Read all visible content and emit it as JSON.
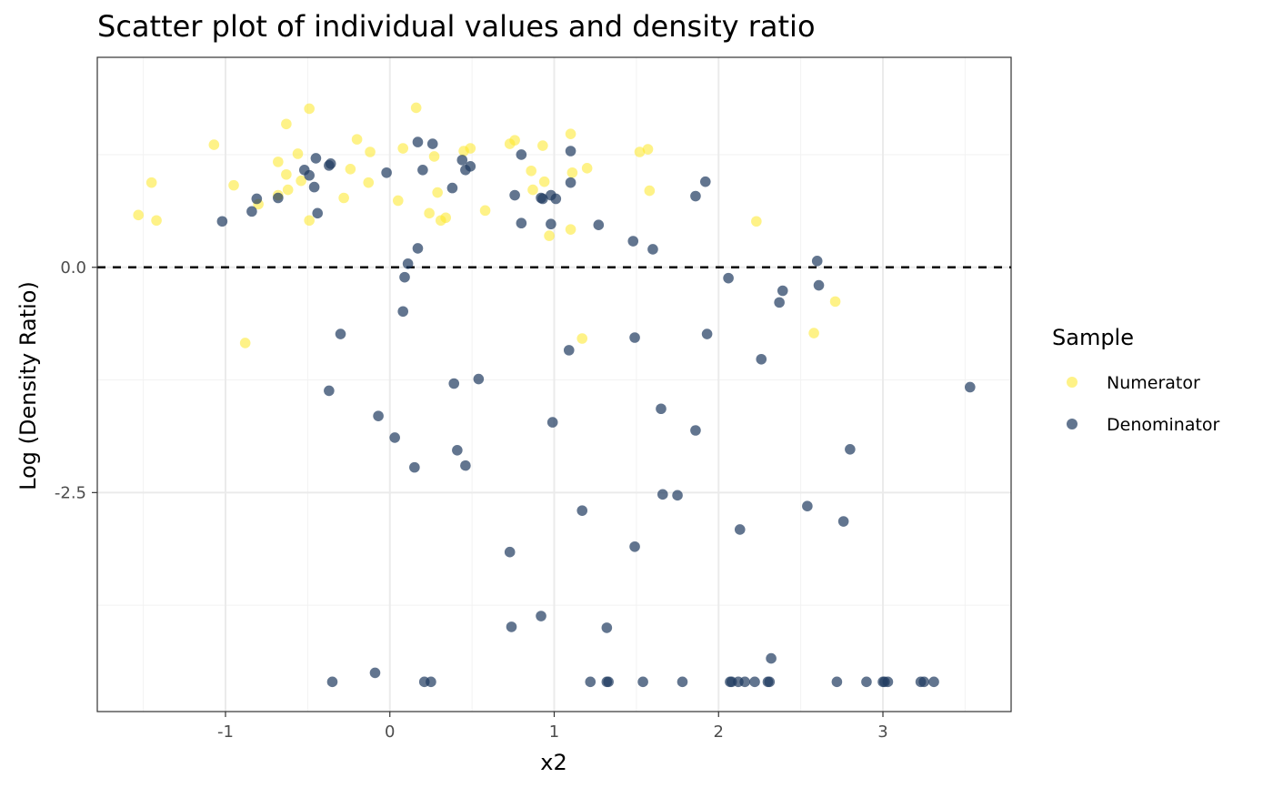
{
  "chart_data": {
    "type": "scatter",
    "title": "Scatter plot of individual values and density ratio",
    "xlabel": "x2",
    "ylabel": "Log (Density Ratio)",
    "xlim": [
      -1.78,
      3.78
    ],
    "ylim": [
      -4.93,
      2.33
    ],
    "x_ticks": [
      -1,
      0,
      1,
      2,
      3
    ],
    "x_tick_labels": [
      "-1",
      "0",
      "1",
      "2",
      "3"
    ],
    "y_ticks": [
      0.0,
      -2.5
    ],
    "y_tick_labels": [
      "0.0",
      "-2.5"
    ],
    "grid": true,
    "reference_line": {
      "y": 0,
      "style": "dashed"
    },
    "legend": {
      "title": "Sample",
      "position": "right",
      "entries": [
        {
          "label": "Numerator",
          "color": "#fde725"
        },
        {
          "label": "Denominator",
          "color": "#1f3a60"
        }
      ]
    },
    "series": [
      {
        "name": "Numerator",
        "color": "#fde725",
        "points": [
          [
            -1.53,
            0.58
          ],
          [
            -1.45,
            0.94
          ],
          [
            -1.42,
            0.52
          ],
          [
            -1.07,
            1.36
          ],
          [
            -0.95,
            0.91
          ],
          [
            -0.88,
            -0.84
          ],
          [
            -0.8,
            0.7
          ],
          [
            -0.68,
            0.8
          ],
          [
            -0.68,
            1.17
          ],
          [
            -0.63,
            1.59
          ],
          [
            -0.63,
            1.03
          ],
          [
            -0.62,
            0.86
          ],
          [
            -0.56,
            1.26
          ],
          [
            -0.54,
            0.96
          ],
          [
            -0.49,
            1.76
          ],
          [
            -0.49,
            0.52
          ],
          [
            -0.28,
            0.77
          ],
          [
            -0.24,
            1.09
          ],
          [
            -0.2,
            1.42
          ],
          [
            -0.13,
            0.94
          ],
          [
            -0.12,
            1.28
          ],
          [
            0.05,
            0.74
          ],
          [
            0.08,
            1.32
          ],
          [
            0.16,
            1.77
          ],
          [
            0.24,
            0.6
          ],
          [
            0.27,
            1.23
          ],
          [
            0.29,
            0.83
          ],
          [
            0.31,
            0.52
          ],
          [
            0.34,
            0.55
          ],
          [
            0.45,
            1.29
          ],
          [
            0.49,
            1.32
          ],
          [
            0.58,
            0.63
          ],
          [
            0.73,
            1.37
          ],
          [
            0.76,
            1.41
          ],
          [
            0.86,
            1.07
          ],
          [
            0.87,
            0.86
          ],
          [
            0.93,
            1.35
          ],
          [
            0.94,
            0.95
          ],
          [
            0.97,
            0.35
          ],
          [
            1.1,
            0.42
          ],
          [
            1.1,
            1.48
          ],
          [
            1.11,
            1.05
          ],
          [
            1.17,
            -0.79
          ],
          [
            1.2,
            1.1
          ],
          [
            1.52,
            1.28
          ],
          [
            1.57,
            1.31
          ],
          [
            1.58,
            0.85
          ],
          [
            2.23,
            0.51
          ],
          [
            2.58,
            -0.73
          ],
          [
            2.71,
            -0.38
          ]
        ]
      },
      {
        "name": "Denominator",
        "color": "#1f3a60",
        "points": [
          [
            -1.02,
            0.51
          ],
          [
            -0.84,
            0.62
          ],
          [
            -0.81,
            0.76
          ],
          [
            -0.68,
            0.77
          ],
          [
            -0.52,
            1.08
          ],
          [
            -0.49,
            1.02
          ],
          [
            -0.46,
            0.89
          ],
          [
            -0.45,
            1.21
          ],
          [
            -0.44,
            0.6
          ],
          [
            -0.37,
            1.13
          ],
          [
            -0.36,
            1.15
          ],
          [
            -0.37,
            -1.37
          ],
          [
            -0.35,
            -4.6
          ],
          [
            -0.3,
            -0.74
          ],
          [
            -0.09,
            -4.5
          ],
          [
            -0.07,
            -1.65
          ],
          [
            -0.02,
            1.05
          ],
          [
            0.03,
            -1.89
          ],
          [
            0.08,
            -0.49
          ],
          [
            0.09,
            -0.11
          ],
          [
            0.11,
            0.04
          ],
          [
            0.15,
            -2.22
          ],
          [
            0.17,
            1.39
          ],
          [
            0.17,
            0.21
          ],
          [
            0.2,
            1.08
          ],
          [
            0.21,
            -4.6
          ],
          [
            0.25,
            -4.6
          ],
          [
            0.26,
            1.37
          ],
          [
            0.38,
            0.88
          ],
          [
            0.39,
            -1.29
          ],
          [
            0.41,
            -2.03
          ],
          [
            0.44,
            1.19
          ],
          [
            0.46,
            1.08
          ],
          [
            0.46,
            -2.2
          ],
          [
            0.49,
            1.12
          ],
          [
            0.54,
            -1.24
          ],
          [
            0.73,
            -3.16
          ],
          [
            0.74,
            -3.99
          ],
          [
            0.76,
            0.8
          ],
          [
            0.8,
            1.25
          ],
          [
            0.8,
            0.49
          ],
          [
            0.92,
            0.77
          ],
          [
            0.92,
            -3.87
          ],
          [
            0.93,
            0.76
          ],
          [
            0.98,
            0.48
          ],
          [
            0.99,
            -1.72
          ],
          [
            0.98,
            0.8
          ],
          [
            1.01,
            0.76
          ],
          [
            1.09,
            -0.92
          ],
          [
            1.1,
            1.29
          ],
          [
            1.1,
            0.94
          ],
          [
            1.17,
            -2.7
          ],
          [
            1.22,
            -4.6
          ],
          [
            1.27,
            0.47
          ],
          [
            1.32,
            -4.6
          ],
          [
            1.32,
            -4.0
          ],
          [
            1.33,
            -4.6
          ],
          [
            1.48,
            0.29
          ],
          [
            1.49,
            -0.78
          ],
          [
            1.49,
            -3.1
          ],
          [
            1.54,
            -4.6
          ],
          [
            1.6,
            0.2
          ],
          [
            1.65,
            -1.57
          ],
          [
            1.66,
            -2.52
          ],
          [
            1.75,
            -2.53
          ],
          [
            1.78,
            -4.6
          ],
          [
            1.86,
            0.79
          ],
          [
            1.86,
            -1.81
          ],
          [
            1.92,
            0.95
          ],
          [
            1.93,
            -0.74
          ],
          [
            2.06,
            -0.12
          ],
          [
            2.07,
            -4.6
          ],
          [
            2.08,
            -4.6
          ],
          [
            2.12,
            -4.6
          ],
          [
            2.13,
            -2.91
          ],
          [
            2.16,
            -4.6
          ],
          [
            2.22,
            -4.6
          ],
          [
            2.26,
            -1.02
          ],
          [
            2.3,
            -4.6
          ],
          [
            2.31,
            -4.6
          ],
          [
            2.32,
            -4.34
          ],
          [
            2.37,
            -0.39
          ],
          [
            2.39,
            -0.26
          ],
          [
            2.54,
            -2.65
          ],
          [
            2.6,
            0.07
          ],
          [
            2.61,
            -0.2
          ],
          [
            2.72,
            -4.6
          ],
          [
            2.76,
            -2.82
          ],
          [
            2.8,
            -2.02
          ],
          [
            2.9,
            -4.6
          ],
          [
            3.0,
            -4.6
          ],
          [
            3.01,
            -4.6
          ],
          [
            3.03,
            -4.6
          ],
          [
            3.23,
            -4.6
          ],
          [
            3.25,
            -4.6
          ],
          [
            3.31,
            -4.6
          ],
          [
            3.53,
            -1.33
          ]
        ]
      }
    ]
  }
}
